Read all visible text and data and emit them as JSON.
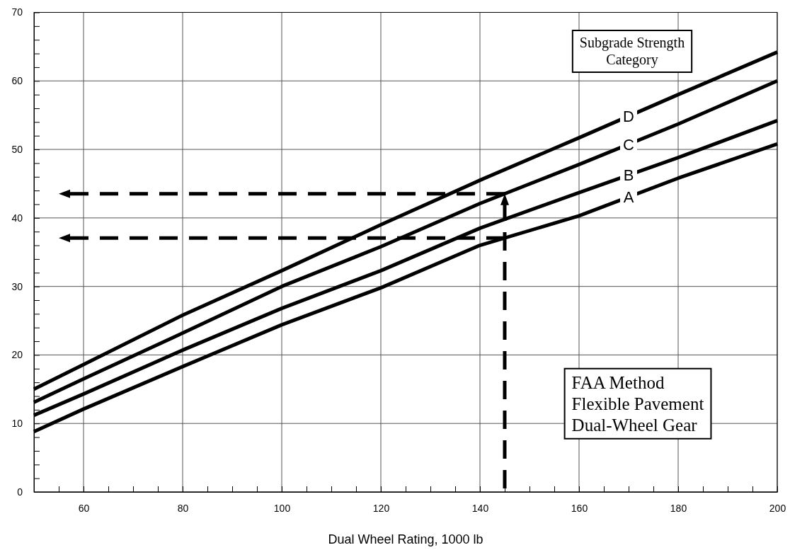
{
  "chart_data": {
    "type": "line",
    "xlabel": "Dual Wheel Rating, 1000 lb",
    "x": [
      50,
      60,
      80,
      100,
      120,
      140,
      160,
      180,
      200
    ],
    "series": [
      {
        "name": "A",
        "color": "#000000",
        "values": [
          8.8,
          12.1,
          18.3,
          24.4,
          29.8,
          36.0,
          40.3,
          45.8,
          50.8
        ]
      },
      {
        "name": "B",
        "color": "#000000",
        "values": [
          11.2,
          14.3,
          20.7,
          26.8,
          32.3,
          38.5,
          43.7,
          48.8,
          54.2
        ]
      },
      {
        "name": "C",
        "color": "#000000",
        "values": [
          13.1,
          16.5,
          23.2,
          30.0,
          35.8,
          42.1,
          47.8,
          53.7,
          60.0
        ]
      },
      {
        "name": "D",
        "color": "#000000",
        "values": [
          15.0,
          18.6,
          25.8,
          32.3,
          39.0,
          45.5,
          51.7,
          58.0,
          64.2
        ]
      }
    ],
    "xlim": [
      50,
      200
    ],
    "xticks": [
      {
        "value": 55,
        "label": null
      },
      60,
      {
        "value": 65,
        "label": null
      },
      {
        "value": 70,
        "label": null
      },
      {
        "value": 75,
        "label": null
      },
      80,
      {
        "value": 85,
        "label": null
      },
      {
        "value": 90,
        "label": null
      },
      {
        "value": 95,
        "label": null
      },
      100,
      {
        "value": 105,
        "label": null
      },
      {
        "value": 110,
        "label": null
      },
      {
        "value": 115,
        "label": null
      },
      120,
      {
        "value": 125,
        "label": null
      },
      {
        "value": 130,
        "label": null
      },
      {
        "value": 135,
        "label": null
      },
      140,
      {
        "value": 145,
        "label": null
      },
      {
        "value": 150,
        "label": null
      },
      {
        "value": 155,
        "label": null
      },
      160,
      {
        "value": 165,
        "label": null
      },
      {
        "value": 170,
        "label": null
      },
      {
        "value": 175,
        "label": null
      },
      180,
      {
        "value": 185,
        "label": null
      },
      {
        "value": 190,
        "label": null
      },
      {
        "value": 195,
        "label": null
      },
      200
    ],
    "ylim": [
      0,
      70
    ],
    "yticks": [
      0,
      {
        "value": 2,
        "label": null
      },
      {
        "value": 4,
        "label": null
      },
      {
        "value": 6,
        "label": null
      },
      {
        "value": 8,
        "label": null
      },
      10,
      {
        "value": 12,
        "label": null
      },
      {
        "value": 14,
        "label": null
      },
      {
        "value": 16,
        "label": null
      },
      {
        "value": 18,
        "label": null
      },
      20,
      {
        "value": 22,
        "label": null
      },
      {
        "value": 24,
        "label": null
      },
      {
        "value": 26,
        "label": null
      },
      {
        "value": 28,
        "label": null
      },
      30,
      {
        "value": 32,
        "label": null
      },
      {
        "value": 34,
        "label": null
      },
      {
        "value": 36,
        "label": null
      },
      {
        "value": 38,
        "label": null
      },
      40,
      {
        "value": 42,
        "label": null
      },
      {
        "value": 44,
        "label": null
      },
      {
        "value": 46,
        "label": null
      },
      {
        "value": 48,
        "label": null
      },
      50,
      {
        "value": 52,
        "label": null
      },
      {
        "value": 54,
        "label": null
      },
      {
        "value": 56,
        "label": null
      },
      {
        "value": 58,
        "label": null
      },
      60,
      {
        "value": 62,
        "label": null
      },
      {
        "value": 64,
        "label": null
      },
      {
        "value": 66,
        "label": null
      },
      {
        "value": 68,
        "label": null
      },
      70
    ],
    "grid": true,
    "marker": "none",
    "line_style": "solid",
    "annotations": [
      "Subgrade Strength Category",
      "FAA Method\nFlexible Pavement\nDual-Wheel Gear"
    ]
  }
}
